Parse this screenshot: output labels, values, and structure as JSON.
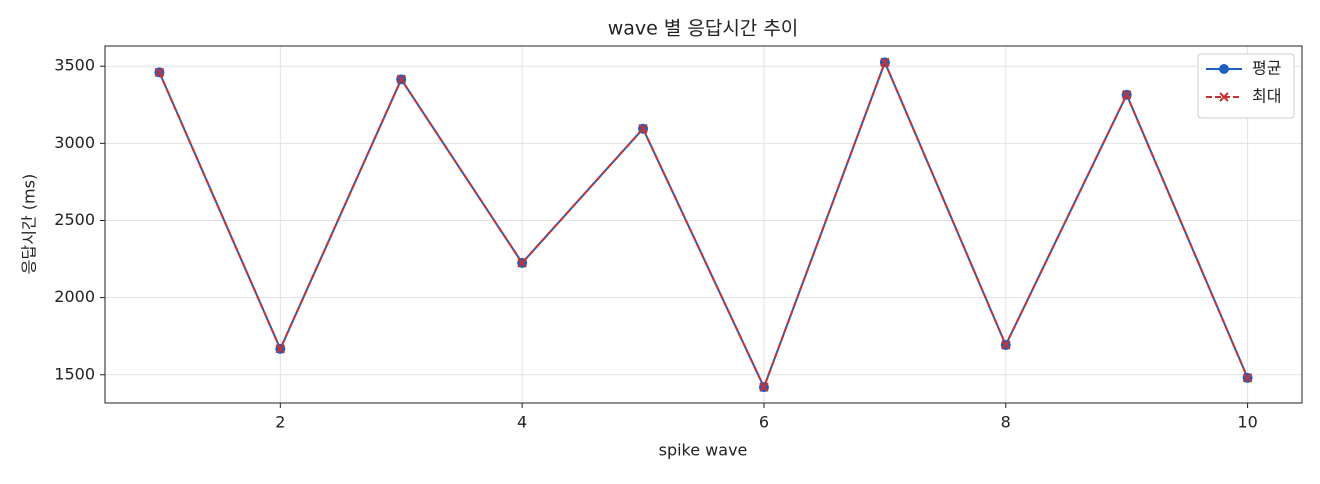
{
  "chart_data": {
    "type": "line",
    "title": "wave 별 응답시간 추이",
    "xlabel": "spike wave",
    "ylabel": "응답시간 (ms)",
    "x": [
      1,
      2,
      3,
      4,
      5,
      6,
      7,
      8,
      9,
      10
    ],
    "series": [
      {
        "name": "평균",
        "color": "#1f5fbf",
        "marker": "o",
        "linestyle": "solid",
        "values": [
          3460,
          1668,
          3415,
          2225,
          3095,
          1420,
          3525,
          1693,
          3315,
          1480
        ]
      },
      {
        "name": "최대",
        "color": "#c83232",
        "marker": "x",
        "linestyle": "dashed",
        "values": [
          3460,
          1668,
          3415,
          2225,
          3095,
          1420,
          3525,
          1693,
          3315,
          1480
        ]
      }
    ],
    "xlim": [
      0.55,
      10.45
    ],
    "xticks": [
      2,
      4,
      6,
      8,
      10
    ],
    "ylim": [
      1317,
      3631
    ],
    "yticks": [
      1500,
      2000,
      2500,
      3000,
      3500
    ],
    "grid": true,
    "legend": "upper right"
  }
}
